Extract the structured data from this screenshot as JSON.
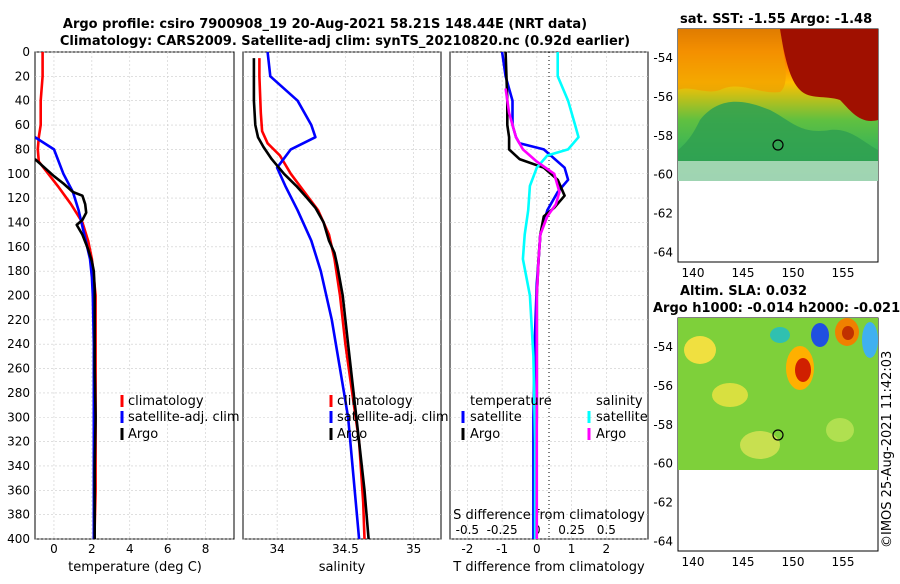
{
  "header": {
    "title_line1": "Argo profile: csiro 7900908_19 20-Aug-2021 58.21S 148.44E (NRT data)",
    "title_line2": "Climatology: CARS2009. Satellite-adj clim: synTS_20210820.nc (0.92d earlier)"
  },
  "colors": {
    "climatology": "#ff0000",
    "satellite": "#0000ff",
    "argo": "#000000",
    "salinity_satellite": "#00ffff",
    "salinity_argo": "#ff00ff"
  },
  "chart_data": [
    {
      "id": "temperature",
      "type": "line",
      "xlabel": "temperature (deg C)",
      "ylabel": "",
      "xlim": [
        -1,
        9.5
      ],
      "ylim": [
        400,
        0
      ],
      "x_ticks": [
        0,
        2,
        4,
        6,
        8
      ],
      "x_tick_labels": [
        "0",
        "2",
        "4",
        "6",
        "8"
      ],
      "y_ticks": [
        0,
        20,
        40,
        60,
        80,
        100,
        120,
        140,
        160,
        180,
        200,
        220,
        240,
        260,
        280,
        300,
        320,
        340,
        360,
        380,
        400
      ],
      "y_tick_labels": [
        "0",
        "20",
        "40",
        "60",
        "80",
        "100",
        "120",
        "140",
        "160",
        "180",
        "200",
        "220",
        "240",
        "260",
        "280",
        "300",
        "320",
        "340",
        "360",
        "380",
        "400"
      ],
      "legend": [
        "climatology",
        "satellite-adj. clim",
        "Argo"
      ],
      "series": [
        {
          "name": "climatology",
          "color": "#ff0000",
          "x": [
            -0.6,
            -0.6,
            -0.7,
            -0.7,
            -0.8,
            -0.85,
            -0.8,
            0.2,
            0.9,
            1.5,
            1.8,
            2.0,
            2.1,
            2.2,
            2.2,
            2.2,
            2.2,
            2.2,
            2.2,
            2.15,
            2.15
          ],
          "y": [
            0,
            20,
            40,
            60,
            70,
            80,
            90,
            110,
            125,
            140,
            155,
            170,
            185,
            200,
            240,
            280,
            300,
            330,
            360,
            390,
            400
          ]
        },
        {
          "name": "satellite-adj. clim",
          "color": "#0000ff",
          "x": [
            -1,
            0,
            0.5,
            1.0,
            1.3,
            1.6,
            1.9,
            2.0,
            2.05,
            2.1,
            2.1,
            2.1,
            2.1,
            2.1,
            2.1
          ],
          "y": [
            70,
            80,
            100,
            115,
            130,
            150,
            170,
            185,
            200,
            240,
            280,
            320,
            360,
            390,
            400
          ]
        },
        {
          "name": "Argo",
          "color": "#000000",
          "x": [
            -1,
            0,
            0.5,
            1.0,
            1.5,
            1.65,
            1.7,
            1.5,
            1.2,
            1.5,
            1.8,
            2.0,
            2.1,
            2.15,
            2.15,
            2.15,
            2.2,
            2.15,
            2.15,
            2.15,
            2.15
          ],
          "y": [
            88,
            102,
            108,
            115,
            118,
            125,
            132,
            138,
            142,
            150,
            162,
            172,
            180,
            195,
            220,
            260,
            300,
            340,
            370,
            395,
            400
          ]
        }
      ]
    },
    {
      "id": "salinity",
      "type": "line",
      "xlabel": "salinity",
      "ylabel": "",
      "xlim": [
        33.75,
        35.2
      ],
      "ylim": [
        400,
        0
      ],
      "x_ticks": [
        34,
        34.5,
        35
      ],
      "x_tick_labels": [
        "34",
        "34.5",
        "35"
      ],
      "legend": [
        "climatology",
        "satellite-adj. clim",
        "Argo"
      ],
      "series": [
        {
          "name": "climatology",
          "color": "#ff0000",
          "x": [
            33.87,
            33.87,
            33.88,
            33.89,
            33.93,
            34.02,
            34.1,
            34.2,
            34.3,
            34.38,
            34.42,
            34.46,
            34.5,
            34.55,
            34.6,
            34.63,
            34.64
          ],
          "y": [
            5,
            20,
            50,
            65,
            75,
            85,
            100,
            115,
            130,
            150,
            170,
            200,
            240,
            280,
            320,
            370,
            400
          ]
        },
        {
          "name": "satellite-adj. clim",
          "color": "#0000ff",
          "x": [
            33.93,
            33.95,
            34.15,
            34.25,
            34.28,
            34.1,
            34.0,
            34.06,
            34.15,
            34.25,
            34.32,
            34.4,
            34.46,
            34.52,
            34.56,
            34.6
          ],
          "y": [
            0,
            20,
            40,
            60,
            70,
            80,
            95,
            110,
            130,
            155,
            180,
            220,
            260,
            300,
            350,
            400
          ]
        },
        {
          "name": "Argo",
          "color": "#000000",
          "x": [
            33.83,
            33.83,
            33.84,
            33.86,
            33.9,
            33.96,
            34.05,
            34.14,
            34.22,
            34.28,
            34.34,
            34.38,
            34.42,
            34.44,
            34.48,
            34.52,
            34.56,
            34.6,
            34.64,
            34.67
          ],
          "y": [
            5,
            40,
            60,
            70,
            78,
            88,
            100,
            110,
            120,
            128,
            140,
            155,
            165,
            175,
            200,
            240,
            280,
            320,
            360,
            400
          ]
        }
      ]
    },
    {
      "id": "differences",
      "type": "line",
      "xlabel": "T difference from climatology",
      "xlim": [
        -2.5,
        3.2
      ],
      "ylim": [
        400,
        0
      ],
      "x_ticks": [
        -2,
        -1,
        0,
        1,
        2
      ],
      "x_tick_labels": [
        "-2",
        "-1",
        "0",
        "1",
        "2"
      ],
      "secondary_xlabel": "S difference from climatology",
      "secondary_x_ticks": [
        -0.5,
        -0.25,
        0,
        0.25,
        0.5
      ],
      "secondary_x_tick_labels": [
        "-0.5",
        "-0.25",
        "0",
        "0.25",
        "0.5"
      ],
      "legend_temperature_title": "temperature",
      "legend_salinity_title": "salinity",
      "legend_temperature": [
        "satellite",
        "Argo"
      ],
      "legend_salinity": [
        "satellite",
        "Argo"
      ],
      "series": [
        {
          "name": "T satellite",
          "color": "#0000ff",
          "x": [
            -1.0,
            -0.9,
            -0.7,
            -0.7,
            -0.6,
            -0.5,
            0.2,
            0.8,
            0.9,
            0.6,
            0.3,
            0.1,
            0.05,
            0.0,
            -0.05,
            -0.1,
            -0.1
          ],
          "y": [
            0,
            20,
            40,
            60,
            70,
            75,
            80,
            95,
            105,
            115,
            130,
            150,
            170,
            190,
            230,
            300,
            400
          ]
        },
        {
          "name": "T Argo",
          "color": "#000000",
          "x": [
            -0.9,
            -0.85,
            -0.85,
            -0.8,
            -0.8,
            -0.5,
            0.2,
            0.6,
            0.8,
            0.5,
            0.2,
            0.1,
            0.05,
            0.0,
            0.0,
            -0.05
          ],
          "y": [
            0,
            40,
            60,
            70,
            80,
            88,
            95,
            105,
            118,
            128,
            135,
            150,
            170,
            200,
            300,
            400
          ]
        },
        {
          "name": "S satellite",
          "color": "#00ffff",
          "x": [
            0.6,
            0.6,
            0.9,
            1.1,
            1.2,
            0.9,
            0.3,
            0.0,
            -0.2,
            -0.25,
            -0.35,
            -0.4,
            -0.2,
            -0.1,
            -0.05,
            -0.05
          ],
          "y": [
            0,
            20,
            40,
            60,
            70,
            80,
            85,
            95,
            110,
            130,
            150,
            170,
            200,
            250,
            320,
            400
          ]
        },
        {
          "name": "S Argo",
          "color": "#ff00ff",
          "x": [
            -0.9,
            -0.8,
            -0.7,
            -0.6,
            -0.4,
            0.0,
            0.5,
            0.65,
            0.55,
            0.3,
            0.1,
            0.05,
            0.0,
            0.0,
            0.0
          ],
          "y": [
            30,
            50,
            60,
            70,
            80,
            90,
            100,
            115,
            125,
            135,
            150,
            170,
            200,
            300,
            400
          ]
        }
      ]
    },
    {
      "id": "sst-map",
      "type": "heatmap",
      "title": "sat. SST: -1.55 Argo: -1.48",
      "x_ticks": [
        140,
        145,
        150,
        155
      ],
      "x_tick_labels": [
        "140",
        "145",
        "150",
        "155"
      ],
      "y_ticks": [
        -54,
        -56,
        -58,
        -60,
        -62,
        -64
      ],
      "y_tick_labels": [
        "-54",
        "-56",
        "-58",
        "-60",
        "-62",
        "-64"
      ],
      "xlim": [
        138.5,
        158.5
      ],
      "ylim": [
        -64.5,
        -52.5
      ],
      "marker": {
        "lon": 148.44,
        "lat": -58.21
      }
    },
    {
      "id": "sla-map",
      "type": "heatmap",
      "title_line1": "Altim. SLA: 0.032",
      "title_line2": "Argo h1000: -0.014 h2000: -0.021",
      "x_ticks": [
        140,
        145,
        150,
        155
      ],
      "x_tick_labels": [
        "140",
        "145",
        "150",
        "155"
      ],
      "y_ticks": [
        -54,
        -56,
        -58,
        -60,
        -62,
        -64
      ],
      "y_tick_labels": [
        "-54",
        "-56",
        "-58",
        "-60",
        "-62",
        "-64"
      ],
      "xlim": [
        138.5,
        158.5
      ],
      "ylim": [
        -64.5,
        -52.5
      ],
      "marker": {
        "lon": 148.44,
        "lat": -58.21
      }
    }
  ],
  "watermark": "©IMOS 25-Aug-2021 11:42:03"
}
